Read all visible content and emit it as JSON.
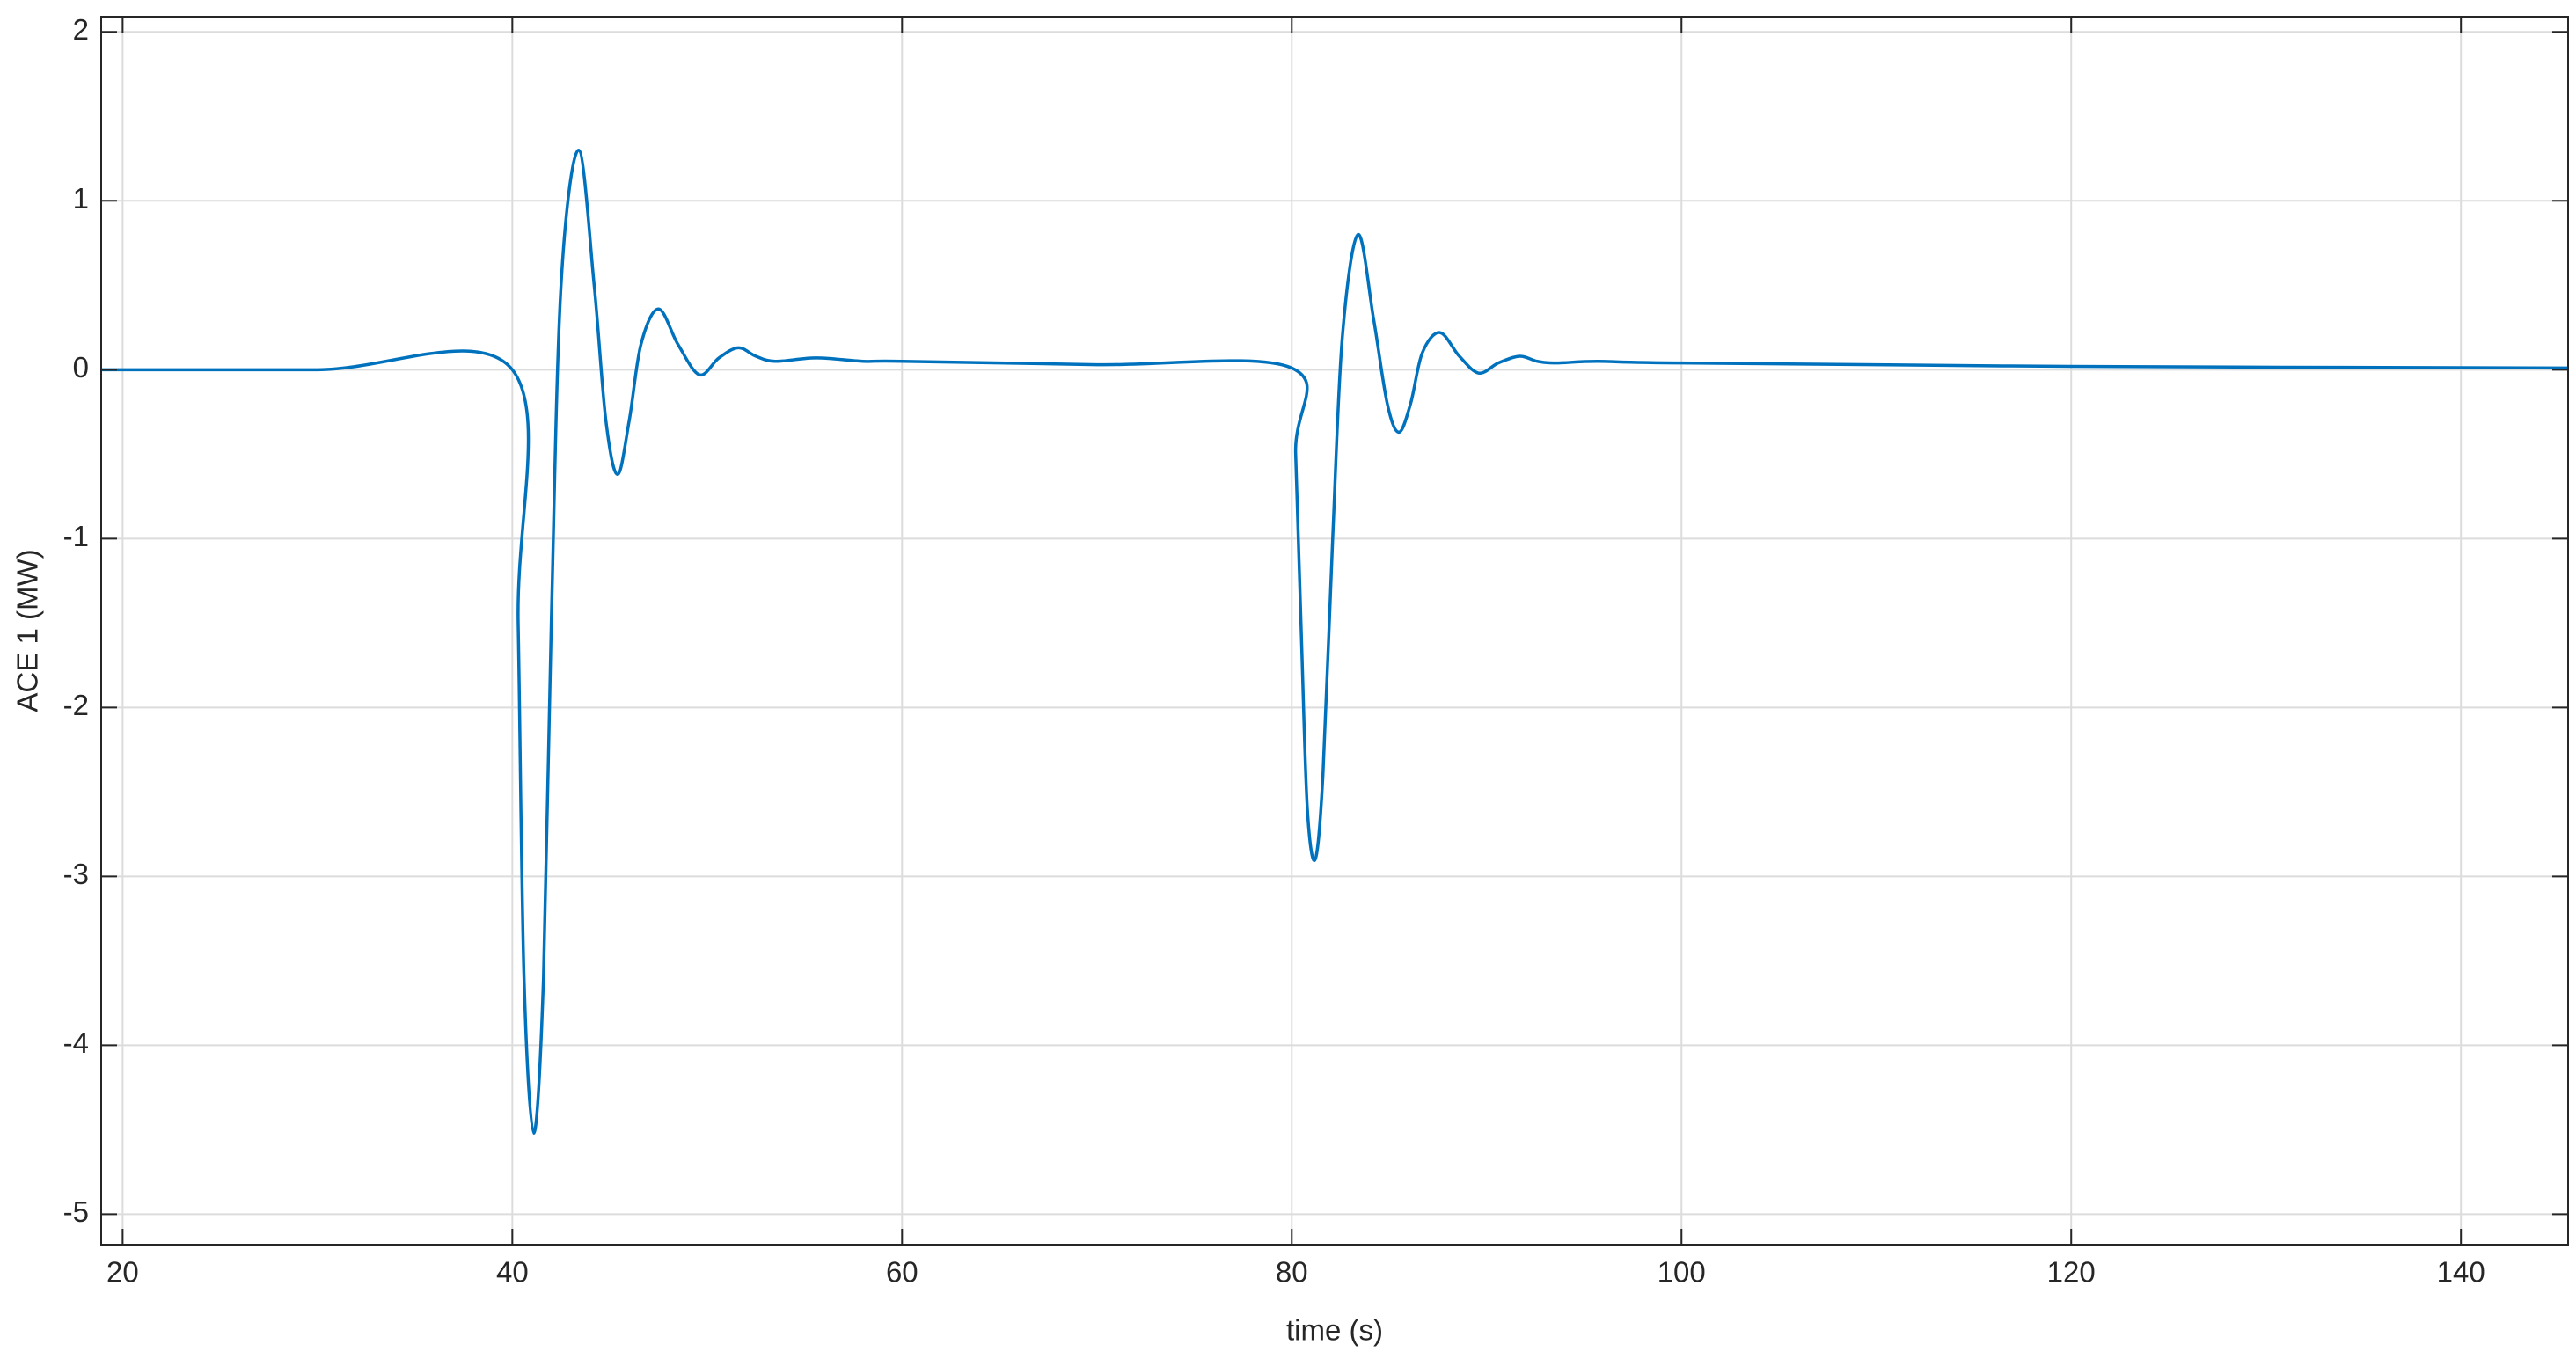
{
  "chart_data": {
    "type": "line",
    "x_label": "time (s)",
    "y_label": "ACE 1 (MW)",
    "x": [
      18.9,
      30,
      40,
      40.3,
      40.6,
      41.1,
      41.6,
      42.0,
      42.5,
      43.4,
      44.2,
      44.8,
      45.4,
      46.0,
      46.6,
      47.5,
      48.5,
      49.6,
      50.6,
      51.6,
      52.5,
      53.5,
      55.6,
      58,
      60,
      70,
      80,
      80.2,
      80.5,
      80.8,
      81.2,
      81.6,
      82.1,
      82.6,
      83.4,
      84.2,
      84.9,
      85.5,
      86.1,
      86.7,
      87.6,
      88.6,
      89.6,
      90.6,
      91.7,
      92.6,
      93.6,
      95.7,
      100,
      120,
      145.5
    ],
    "series": [
      {
        "name": "ACE 1",
        "color": "#0072bd",
        "values": [
          0,
          0,
          0,
          -1.5,
          -3.6,
          -4.52,
          -3.6,
          -1.5,
          0.5,
          1.3,
          0.5,
          -0.3,
          -0.62,
          -0.3,
          0.15,
          0.36,
          0.15,
          -0.03,
          0.07,
          0.13,
          0.08,
          0.05,
          0.07,
          0.05,
          0.05,
          0.03,
          0.01,
          -0.5,
          -1.6,
          -2.6,
          -2.9,
          -2.4,
          -1.0,
          0.2,
          0.8,
          0.3,
          -0.2,
          -0.37,
          -0.2,
          0.1,
          0.22,
          0.08,
          -0.02,
          0.04,
          0.08,
          0.05,
          0.04,
          0.05,
          0.04,
          0.02,
          0.01
        ]
      }
    ],
    "xlim": [
      18.9,
      145.5
    ],
    "ylim": [
      -5.18,
      2.09
    ],
    "xticks": [
      20,
      40,
      60,
      80,
      100,
      120,
      140
    ],
    "yticks": [
      -5,
      -4,
      -3,
      -2,
      -1,
      0,
      1,
      2
    ],
    "grid": true
  }
}
